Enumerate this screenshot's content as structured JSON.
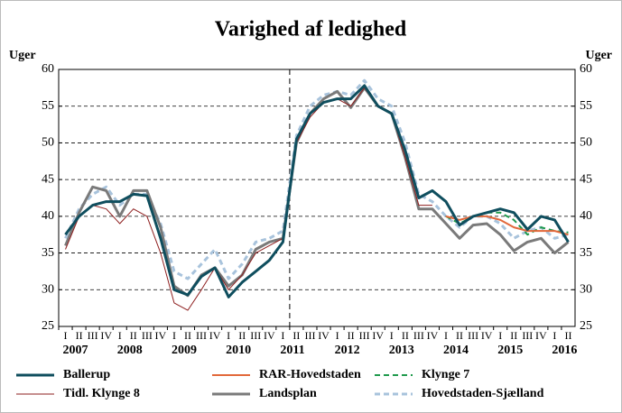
{
  "chart_data": {
    "type": "line",
    "title": "Varighed af ledighed",
    "ylabel": "Uger",
    "y2label": "Uger",
    "categories": [
      "I",
      "II",
      "III",
      "IV",
      "I",
      "II",
      "III",
      "IV",
      "I",
      "II",
      "III",
      "IV",
      "I",
      "II",
      "III",
      "IV",
      "I",
      "II",
      "III",
      "IV",
      "I",
      "II",
      "III",
      "IV",
      "I",
      "II",
      "III",
      "IV",
      "I",
      "II",
      "III",
      "IV",
      "I",
      "II",
      "III",
      "IV",
      "I",
      "II"
    ],
    "years": [
      "2007",
      "2008",
      "2009",
      "2010",
      "2011",
      "2012",
      "2013",
      "2014",
      "2015",
      "2016"
    ],
    "ylim": [
      25,
      60
    ],
    "yticks": [
      25,
      30,
      35,
      40,
      45,
      50,
      55,
      60
    ],
    "y2lim": [
      25,
      60
    ],
    "y2ticks": [
      25,
      30,
      35,
      40,
      45,
      50,
      55,
      60
    ],
    "grid": true,
    "vline": 16,
    "legend": "bottom",
    "series": [
      {
        "name": "Ballerup",
        "color": "#0f4e5e",
        "style": "solid",
        "weight": "thick",
        "values": [
          37.5,
          40,
          41.5,
          42,
          42,
          43,
          42.8,
          37,
          30,
          29.3,
          31.8,
          33,
          29,
          31,
          32.5,
          34,
          36.5,
          50.5,
          54,
          55.5,
          56,
          56,
          57.8,
          55,
          54,
          49,
          42.5,
          43.5,
          42,
          38.8,
          40,
          40.5,
          41,
          40.5,
          38.2,
          40,
          39.5,
          36.5
        ]
      },
      {
        "name": "RAR-Hovedstaden",
        "color": "#e2683a",
        "style": "solid",
        "weight": "medium",
        "values": [
          null,
          null,
          null,
          null,
          null,
          null,
          null,
          null,
          null,
          null,
          null,
          null,
          null,
          null,
          null,
          null,
          null,
          null,
          null,
          null,
          null,
          null,
          null,
          null,
          null,
          null,
          null,
          null,
          40,
          39.5,
          40,
          40,
          39.5,
          38.5,
          38,
          38,
          38,
          37.5
        ]
      },
      {
        "name": "Klynge 7",
        "color": "#1f9a4c",
        "style": "dashed",
        "weight": "medium",
        "values": [
          null,
          null,
          null,
          null,
          null,
          null,
          null,
          null,
          null,
          null,
          null,
          null,
          null,
          null,
          null,
          null,
          null,
          null,
          null,
          null,
          null,
          null,
          null,
          null,
          null,
          null,
          null,
          null,
          40,
          39,
          40,
          40.5,
          40.5,
          39.5,
          37.5,
          38.5,
          38,
          37.8
        ]
      },
      {
        "name": "Tidl. Klynge 8",
        "color": "#8e1f1f",
        "style": "solid",
        "weight": "thin",
        "values": [
          35.5,
          40,
          41.5,
          41,
          39,
          41,
          40,
          35,
          28.2,
          27.2,
          30,
          33,
          30,
          32,
          35,
          36,
          37,
          50,
          53.5,
          55.5,
          56,
          55,
          57.5,
          55,
          54,
          48,
          41.5,
          41.5,
          null,
          null,
          null,
          null,
          null,
          null,
          null,
          null,
          null,
          null
        ]
      },
      {
        "name": "Landsplan",
        "color": "#7a7a7a",
        "style": "solid",
        "weight": "thick",
        "values": [
          36,
          40.5,
          44,
          43.5,
          40,
          43.5,
          43.5,
          38.5,
          30.5,
          29.2,
          32,
          33,
          30.5,
          32,
          35.5,
          36.5,
          37,
          50,
          54,
          56,
          57,
          54.8,
          57.5,
          55,
          54,
          48,
          41,
          41,
          39,
          37,
          38.8,
          39,
          37.5,
          35.3,
          36.5,
          37,
          35,
          36.5
        ]
      },
      {
        "name": "Hovedstaden-Sjælland",
        "color": "#a8c3dc",
        "style": "dashed",
        "weight": "thick",
        "values": [
          37,
          41,
          43,
          44,
          41.5,
          43,
          43,
          39,
          32.5,
          31.5,
          33.5,
          35.5,
          31.5,
          33.5,
          36.5,
          37,
          38,
          51,
          55,
          56.5,
          57,
          56.5,
          58.5,
          56,
          55,
          50,
          43,
          42,
          40,
          38.5,
          40,
          40,
          39,
          37,
          38,
          38.5,
          37,
          37.5
        ]
      }
    ]
  }
}
